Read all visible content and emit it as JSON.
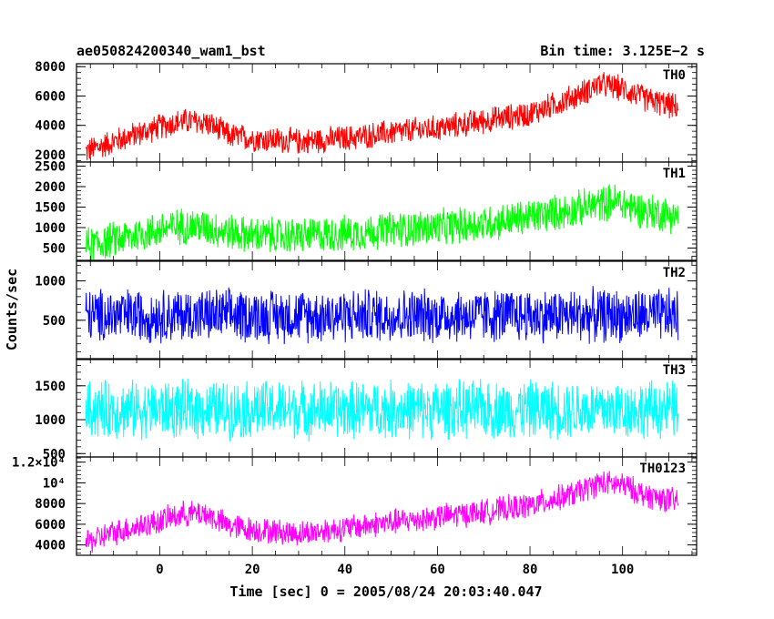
{
  "title_left": "ae050824200340_wam1_bst",
  "title_right": "Bin time: 3.125E−2 s",
  "ylabel": "Counts/sec",
  "xlabel": "Time [sec] 0 = 2005/08/24 20:03:40.047",
  "colors": {
    "TH0": "#ff0000",
    "TH1": "#00ff00",
    "TH2": "#0000ff",
    "TH3": "#00ffff",
    "TH0123": "#ff00ff"
  },
  "chart_data": {
    "type": "line",
    "x_axis": {
      "label": "Time [sec] 0 = 2005/08/24 20:03:40.047",
      "range": [
        -18,
        116
      ],
      "tick_labels": [
        "0",
        "20",
        "40",
        "60",
        "80",
        "100"
      ],
      "ticks": [
        0,
        20,
        40,
        60,
        80,
        100
      ]
    },
    "panels": [
      {
        "name": "TH0",
        "color": "#ff0000",
        "ylim": [
          1500,
          8200
        ],
        "ticks": [
          2000,
          4000,
          6000,
          8000
        ],
        "tick_labels": [
          "2000",
          "4000",
          "6000",
          "8000"
        ],
        "trend_x": [
          -16,
          -10,
          -5,
          0,
          5,
          10,
          15,
          20,
          30,
          40,
          50,
          60,
          70,
          80,
          90,
          95,
          100,
          105,
          112
        ],
        "trend_y": [
          2200,
          2900,
          3400,
          3900,
          4300,
          4200,
          3300,
          3100,
          2900,
          3100,
          3500,
          3800,
          4300,
          4800,
          6000,
          6800,
          6500,
          5800,
          5200
        ],
        "noise": 1000
      },
      {
        "name": "TH1",
        "color": "#00ff00",
        "ylim": [
          200,
          2600
        ],
        "ticks": [
          500,
          1000,
          1500,
          2000,
          2500
        ],
        "tick_labels": [
          "500",
          "1000",
          "1500",
          "2000",
          "2500"
        ],
        "trend_x": [
          -16,
          -10,
          0,
          5,
          10,
          20,
          30,
          40,
          50,
          60,
          70,
          80,
          90,
          98,
          105,
          112
        ],
        "trend_y": [
          550,
          700,
          950,
          1050,
          1000,
          800,
          800,
          850,
          950,
          1000,
          1100,
          1250,
          1450,
          1650,
          1400,
          1300
        ],
        "noise": 500
      },
      {
        "name": "TH2",
        "color": "#0000ff",
        "ylim": [
          0,
          1250
        ],
        "ticks": [
          500,
          1000
        ],
        "tick_labels": [
          "500",
          "1000"
        ],
        "trend_x": [
          -16,
          112
        ],
        "trend_y": [
          560,
          560
        ],
        "noise": 380
      },
      {
        "name": "TH3",
        "color": "#00ffff",
        "ylim": [
          450,
          1900
        ],
        "ticks": [
          500,
          1000,
          1500
        ],
        "tick_labels": [
          "500",
          "1000",
          "1500"
        ],
        "trend_x": [
          -16,
          112
        ],
        "trend_y": [
          1150,
          1150
        ],
        "noise": 480
      },
      {
        "name": "TH0123",
        "color": "#ff00ff",
        "ylim": [
          3000,
          12500
        ],
        "ticks": [
          4000,
          6000,
          8000,
          10000,
          12000
        ],
        "tick_labels": [
          "4000",
          "6000",
          "8000",
          "10⁴",
          "1.2×10⁴"
        ],
        "trend_x": [
          -16,
          -10,
          0,
          5,
          10,
          15,
          20,
          30,
          40,
          50,
          60,
          70,
          80,
          90,
          95,
          100,
          105,
          112
        ],
        "trend_y": [
          4200,
          5200,
          6300,
          7000,
          7000,
          5800,
          5500,
          5100,
          5600,
          6200,
          6700,
          7200,
          7800,
          9000,
          10000,
          9800,
          8800,
          8200
        ],
        "noise": 1400
      }
    ]
  }
}
